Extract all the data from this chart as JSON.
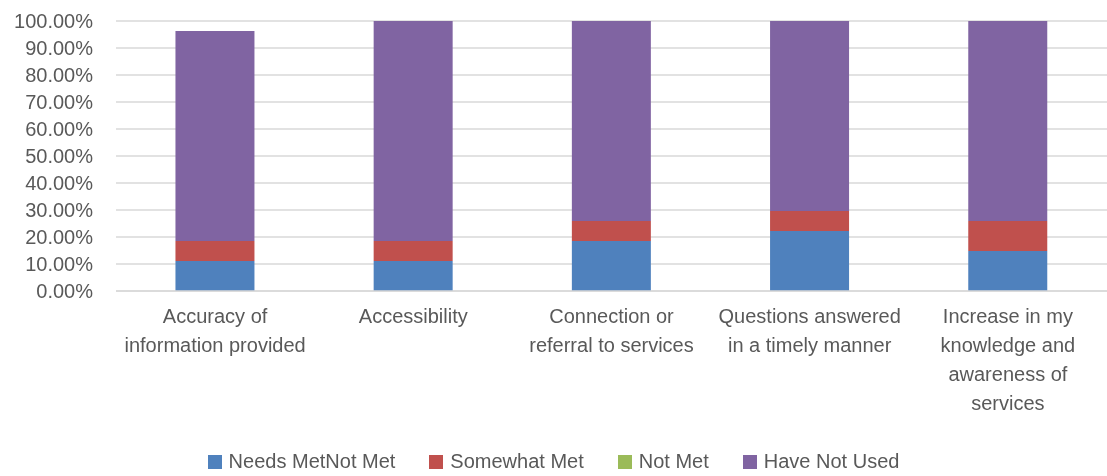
{
  "chart_data": {
    "type": "bar",
    "stacked": true,
    "categories": [
      "Accuracy of information provided",
      "Accessibility",
      "Connection or referral to services",
      "Questions answered in a timely manner",
      "Increase in my knowledge and awareness of services"
    ],
    "series": [
      {
        "name": "Needs MetNot Met",
        "color": "#4f81bd",
        "values": [
          11.1,
          11.1,
          18.5,
          22.2,
          14.8
        ]
      },
      {
        "name": "Somewhat Met",
        "color": "#c0504d",
        "values": [
          7.4,
          7.4,
          7.4,
          7.4,
          11.1
        ]
      },
      {
        "name": "Not Met",
        "color": "#9bbb59",
        "values": [
          0,
          0,
          0,
          0,
          0
        ]
      },
      {
        "name": "Have Not Used",
        "color": "#8064a2",
        "values": [
          77.8,
          81.5,
          74.1,
          70.4,
          74.1
        ]
      }
    ],
    "ylim": [
      0,
      100
    ],
    "yticks": [
      {
        "value": 0,
        "label": "0.00%"
      },
      {
        "value": 10,
        "label": "10.00%"
      },
      {
        "value": 20,
        "label": "20.00%"
      },
      {
        "value": 30,
        "label": "30.00%"
      },
      {
        "value": 40,
        "label": "40.00%"
      },
      {
        "value": 50,
        "label": "50.00%"
      },
      {
        "value": 60,
        "label": "60.00%"
      },
      {
        "value": 70,
        "label": "70.00%"
      },
      {
        "value": 80,
        "label": "80.00%"
      },
      {
        "value": 90,
        "label": "90.00%"
      },
      {
        "value": 100,
        "label": "100.00%"
      }
    ],
    "grid": "y",
    "legend": "bottom"
  }
}
